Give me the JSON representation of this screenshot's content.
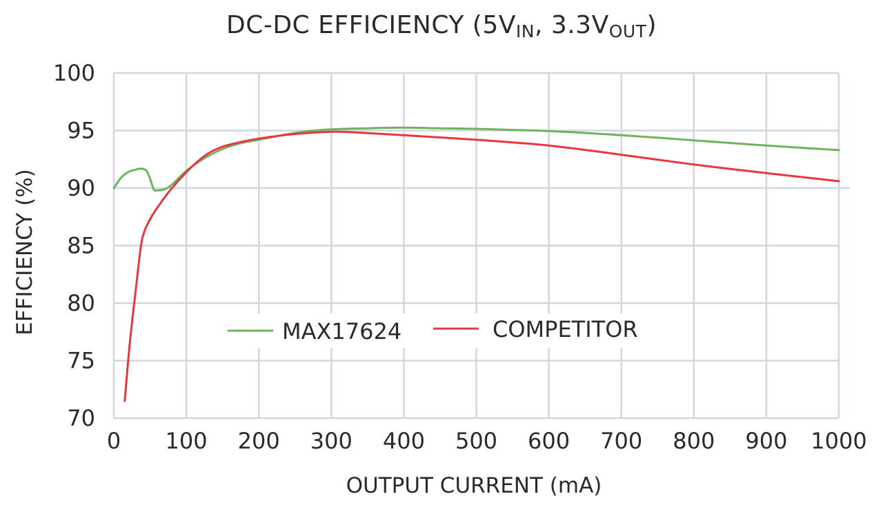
{
  "chart_data": {
    "type": "line",
    "title": {
      "main": "DC-DC EFFICIENCY (5V",
      "sub1": "IN",
      "mid": ", 3.3V",
      "sub2": "OUT",
      "end": ")"
    },
    "xlabel": "OUTPUT CURRENT (mA)",
    "ylabel": "EFFICIENCY (%)",
    "xlim": [
      0,
      1000
    ],
    "ylim": [
      70,
      100
    ],
    "x_ticks": [
      0,
      100,
      200,
      300,
      400,
      500,
      600,
      700,
      800,
      900,
      1000
    ],
    "y_ticks": [
      70,
      75,
      80,
      85,
      90,
      95,
      100
    ],
    "grid": true,
    "legend_position": "center",
    "series": [
      {
        "name": "MAX17624",
        "color": "#6db35e",
        "x": [
          0,
          10,
          20,
          30,
          38,
          45,
          50,
          55,
          60,
          70,
          80,
          100,
          125,
          150,
          175,
          200,
          250,
          300,
          350,
          400,
          450,
          500,
          600,
          700,
          800,
          900,
          1000
        ],
        "y": [
          90.0,
          90.9,
          91.4,
          91.6,
          91.7,
          91.5,
          90.8,
          89.9,
          89.8,
          89.9,
          90.3,
          91.5,
          92.6,
          93.4,
          93.9,
          94.2,
          94.8,
          95.1,
          95.2,
          95.25,
          95.2,
          95.15,
          94.95,
          94.6,
          94.15,
          93.7,
          93.3
        ]
      },
      {
        "name": "COMPETITOR",
        "color": "#e8363d",
        "x": [
          15,
          22,
          30,
          37,
          42,
          50,
          60,
          75,
          90,
          110,
          130,
          150,
          175,
          200,
          250,
          300,
          330,
          400,
          500,
          600,
          700,
          800,
          900,
          1000
        ],
        "y": [
          71.5,
          76.5,
          81.0,
          84.8,
          86.2,
          87.3,
          88.3,
          89.6,
          90.7,
          92.0,
          93.0,
          93.6,
          94.0,
          94.3,
          94.7,
          94.9,
          94.85,
          94.6,
          94.2,
          93.7,
          92.9,
          92.05,
          91.3,
          90.6
        ]
      }
    ]
  }
}
